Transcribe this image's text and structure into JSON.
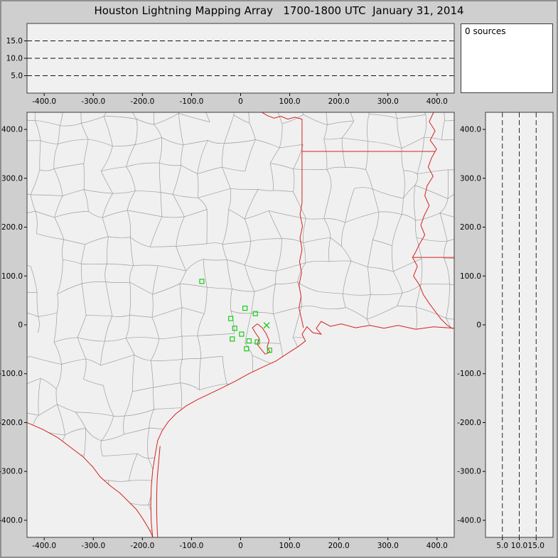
{
  "window": {
    "title": "Houston Lightning Mapping Array   1700-1800 UTC  January 31, 2014"
  },
  "status_panel": {
    "text": "0 sources"
  },
  "colors": {
    "background": "#cfcfcf",
    "panel_bg": "#f0f0f0",
    "sources_bg": "#ffffff",
    "panel_border": "#3c3c3c",
    "county_line": "#9e9e9e",
    "state_line": "#d62020",
    "station": "#00cc00",
    "dash_line": "#111111",
    "text": "#000000"
  },
  "chart_data": {
    "type": "composite",
    "subtype": "lightning-mapping-array-display",
    "title": "Houston Lightning Mapping Array",
    "time_range": "1700-1800 UTC",
    "date": "January 31, 2014",
    "source_count": 0,
    "distance_ticks": {
      "values": [
        -400,
        -300,
        -200,
        -100,
        0,
        100,
        200,
        300,
        400
      ],
      "labels": [
        "-400.0",
        "-300.0",
        "-200.0",
        "-100.0",
        "0",
        "100.0",
        "200.0",
        "300.0",
        "400.0"
      ]
    },
    "altitude_ticks": {
      "values": [
        5,
        10,
        15
      ],
      "labels": [
        "5.0",
        "10.0",
        "15.0"
      ]
    },
    "panels": [
      {
        "id": "altitude-vs-east-west",
        "type": "scatter",
        "xlim": [
          -435,
          435
        ],
        "ylim": [
          0,
          20
        ],
        "grid": "horizontal-dashed-at-5-10-15-km",
        "points": []
      },
      {
        "id": "plan-view-map",
        "type": "scatter",
        "xlim": [
          -435,
          435
        ],
        "ylim": [
          -435,
          435
        ],
        "grid": "off",
        "points": "stations"
      },
      {
        "id": "altitude-vs-north-south",
        "type": "scatter",
        "xlim": [
          0,
          20
        ],
        "ylim": [
          -435,
          435
        ],
        "grid": "vertical-dashed-at-5-10-15-km",
        "points": []
      }
    ],
    "stations": [
      {
        "x": -79,
        "y": 89,
        "m": "sq"
      },
      {
        "x": 9,
        "y": 34,
        "m": "sq"
      },
      {
        "x": 30,
        "y": 23,
        "m": "sq"
      },
      {
        "x": -20,
        "y": 13,
        "m": "sq"
      },
      {
        "x": -12,
        "y": -7,
        "m": "sq"
      },
      {
        "x": 53,
        "y": -1,
        "m": "x"
      },
      {
        "x": 2,
        "y": -19,
        "m": "sq"
      },
      {
        "x": -17,
        "y": -29,
        "m": "sq"
      },
      {
        "x": 17,
        "y": -33,
        "m": "sq"
      },
      {
        "x": 34,
        "y": -35,
        "m": "sq"
      },
      {
        "x": 12,
        "y": -49,
        "m": "sq"
      },
      {
        "x": 59,
        "y": -52,
        "m": "sq"
      }
    ],
    "map_layers": {
      "gulf_coast": [
        [
          436,
          -7
        ],
        [
          393,
          -4
        ],
        [
          357,
          -9
        ],
        [
          321,
          -1
        ],
        [
          292,
          -7
        ],
        [
          263,
          -1
        ],
        [
          234,
          -6
        ],
        [
          205,
          2
        ],
        [
          183,
          -3
        ],
        [
          164,
          7
        ],
        [
          154,
          -7
        ],
        [
          164,
          -19
        ],
        [
          147,
          -16
        ],
        [
          135,
          -4
        ],
        [
          125,
          -19
        ],
        [
          132,
          -33
        ],
        [
          118,
          -44
        ],
        [
          96,
          -58
        ],
        [
          72,
          -74
        ],
        [
          46,
          -86
        ],
        [
          17,
          -100
        ],
        [
          -12,
          -116
        ],
        [
          -38,
          -129
        ],
        [
          -63,
          -141
        ],
        [
          -88,
          -153
        ],
        [
          -111,
          -166
        ],
        [
          -132,
          -182
        ],
        [
          -148,
          -199
        ],
        [
          -160,
          -217
        ],
        [
          -169,
          -237
        ],
        [
          -174,
          -266
        ],
        [
          -179,
          -298
        ],
        [
          -182,
          -332
        ],
        [
          -183,
          -368
        ],
        [
          -182,
          -404
        ],
        [
          -179,
          -435
        ]
      ],
      "barrier_island": [
        [
          -164,
          -248
        ],
        [
          -167,
          -282
        ],
        [
          -170,
          -316
        ],
        [
          -171,
          -350
        ],
        [
          -171,
          -384
        ],
        [
          -170,
          -416
        ],
        [
          -169,
          -435
        ]
      ],
      "rio_grande": [
        [
          -435,
          -200
        ],
        [
          -403,
          -214
        ],
        [
          -372,
          -231
        ],
        [
          -346,
          -251
        ],
        [
          -321,
          -270
        ],
        [
          -301,
          -291
        ],
        [
          -286,
          -311
        ],
        [
          -266,
          -329
        ],
        [
          -246,
          -344
        ],
        [
          -229,
          -361
        ],
        [
          -213,
          -377
        ],
        [
          -201,
          -394
        ],
        [
          -193,
          -407
        ],
        [
          -186,
          -419
        ],
        [
          -181,
          -429
        ],
        [
          -179,
          -435
        ]
      ],
      "red_river": [
        [
          43,
          435
        ],
        [
          55,
          428
        ],
        [
          68,
          423
        ],
        [
          82,
          427
        ],
        [
          96,
          421
        ],
        [
          110,
          425
        ],
        [
          125,
          421
        ]
      ],
      "texas_louisiana_meridian": [
        [
          125,
          421
        ],
        [
          125,
          250
        ]
      ],
      "sabine_river": [
        [
          125,
          250
        ],
        [
          121,
          226
        ],
        [
          126,
          202
        ],
        [
          121,
          178
        ],
        [
          125,
          154
        ],
        [
          120,
          130
        ],
        [
          124,
          106
        ],
        [
          119,
          82
        ],
        [
          123,
          58
        ],
        [
          119,
          34
        ],
        [
          124,
          12
        ],
        [
          128,
          -6
        ]
      ],
      "arkansas_louisiana_border": [
        [
          125,
          355
        ],
        [
          396,
          355
        ]
      ],
      "mississippi_river": [
        [
          393,
          435
        ],
        [
          384,
          416
        ],
        [
          396,
          397
        ],
        [
          386,
          378
        ],
        [
          399,
          360
        ],
        [
          389,
          342
        ],
        [
          382,
          323
        ],
        [
          392,
          304
        ],
        [
          380,
          285
        ],
        [
          375,
          264
        ],
        [
          384,
          244
        ],
        [
          374,
          224
        ],
        [
          367,
          204
        ],
        [
          375,
          184
        ],
        [
          364,
          165
        ],
        [
          356,
          148
        ],
        [
          350,
          138
        ]
      ],
      "louisiana_mississippi_border": [
        [
          350,
          138
        ],
        [
          435,
          138
        ]
      ],
      "mississippi_river_lower": [
        [
          350,
          138
        ],
        [
          360,
          120
        ],
        [
          352,
          100
        ],
        [
          364,
          82
        ],
        [
          372,
          62
        ],
        [
          384,
          44
        ],
        [
          396,
          28
        ],
        [
          408,
          12
        ],
        [
          420,
          0
        ],
        [
          432,
          -8
        ]
      ],
      "galveston_bay": [
        [
          34,
          2
        ],
        [
          44,
          -6
        ],
        [
          52,
          -18
        ],
        [
          58,
          -32
        ],
        [
          54,
          -46
        ],
        [
          60,
          -56
        ],
        [
          50,
          -60
        ],
        [
          42,
          -50
        ],
        [
          34,
          -40
        ],
        [
          38,
          -28
        ],
        [
          30,
          -16
        ],
        [
          24,
          -6
        ],
        [
          34,
          2
        ]
      ]
    }
  }
}
